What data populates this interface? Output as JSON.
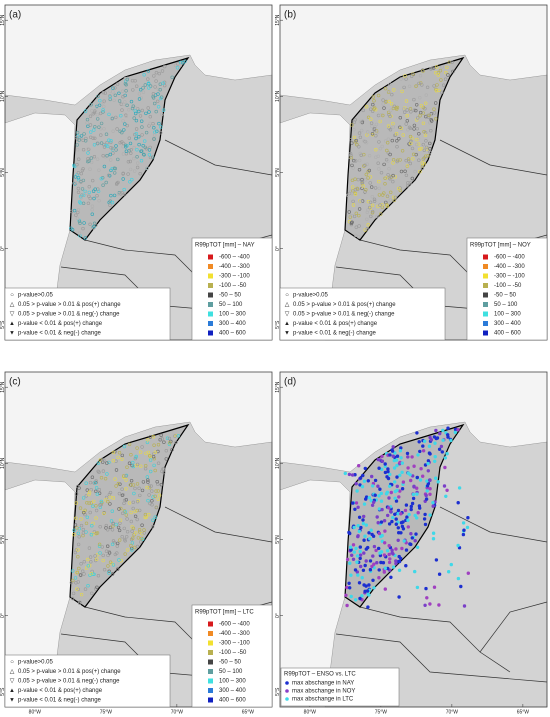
{
  "panels": [
    {
      "label": "(a)",
      "legend_title": "R99pTOT [mm] – NAY",
      "significance_legend": true,
      "dot_colors": [
        "#9a9a9a",
        "#9a9a9a",
        "#b0b0b0",
        "#40d0e0",
        "#2aa6b8",
        "#5f9ea0"
      ]
    },
    {
      "label": "(b)",
      "legend_title": "R99pTOT [mm] – NOY",
      "significance_legend": true,
      "dot_colors": [
        "#9a9a9a",
        "#9a9a9a",
        "#b0b0b0",
        "#e6d84a",
        "#b8b050",
        "#6a6a6a"
      ]
    },
    {
      "label": "(c)",
      "legend_title": "R99pTOT [mm] – LTC",
      "significance_legend": true,
      "dot_colors": [
        "#9a9a9a",
        "#9a9a9a",
        "#e6d84a",
        "#b8b050",
        "#3fd0d8",
        "#6a6a6a"
      ]
    },
    {
      "label": "(d)",
      "legend_title": "R99pTOT – ENSO vs. LTC",
      "significance_legend": false,
      "dot_colors": [
        "#1c2fd0",
        "#7a3fc8",
        "#3fd8e8",
        "#1c2fd0",
        "#a040c0",
        "#3fd8e8"
      ],
      "legend_items": [
        {
          "label": "max abschange in NAY",
          "color": "#1c2fd0"
        },
        {
          "label": "max abschange in NOY",
          "color": "#8a3fc8"
        },
        {
          "label": "max abschange in LTC",
          "color": "#3fd8e8"
        }
      ]
    }
  ],
  "classes": [
    {
      "label": "-600 – -400",
      "color": "#d7191c"
    },
    {
      "label": "-400 – -300",
      "color": "#f08a24"
    },
    {
      "label": "-300 – -100",
      "color": "#f2e030"
    },
    {
      "label": "-100 – -50",
      "color": "#b8b050"
    },
    {
      "label": "-50 – 50",
      "color": "#444444"
    },
    {
      "label": "50 – 100",
      "color": "#5f9ea0"
    },
    {
      "label": "100 – 300",
      "color": "#3fe0e0"
    },
    {
      "label": "300 – 400",
      "color": "#2b7bd8"
    },
    {
      "label": "400 – 600",
      "color": "#1020c0"
    }
  ],
  "significance": [
    {
      "label": "p-value>0.05",
      "symbol": "○"
    },
    {
      "label": "0.05 > p-value > 0.01 & pos(+) change",
      "symbol": "△"
    },
    {
      "label": "0.05 > p-value > 0.01 & neg(-) change",
      "symbol": "▽"
    },
    {
      "label": "p-value < 0.01 & pos(+) change",
      "symbol": "▲"
    },
    {
      "label": "p-value < 0.01 & neg(-) change",
      "symbol": "▼"
    }
  ],
  "lat_lim": [
    -6,
    16
  ],
  "lon_lim": [
    -82.1,
    -63.3
  ],
  "lat_ticks": [
    {
      "value": 15,
      "label": "15°N"
    },
    {
      "value": 10,
      "label": "10°N"
    },
    {
      "value": 5,
      "label": "5°N"
    },
    {
      "value": 0,
      "label": "0°"
    },
    {
      "value": -5,
      "label": "5°S"
    }
  ],
  "lon_ticks": [
    {
      "value": -80,
      "label": "80°W"
    },
    {
      "value": -75,
      "label": "75°W"
    },
    {
      "value": -70,
      "label": "70°W"
    },
    {
      "value": -65,
      "label": "65°W"
    }
  ]
}
